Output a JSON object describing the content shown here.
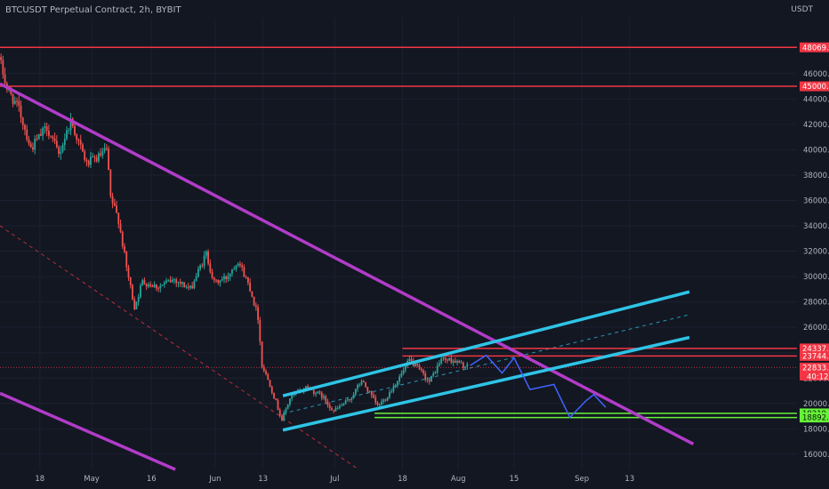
{
  "header": {
    "symbol_title": "BTCUSDT Perpetual Contract, 2h, BYBIT"
  },
  "axis": {
    "currency": "USDT"
  },
  "colors": {
    "background": "#131722",
    "grid": "#1c2030",
    "candle_up": "#26a69a",
    "candle_down": "#ef5350",
    "purple": "#b13cc8",
    "cyan": "#2ec4e6",
    "red": "#f23645",
    "green": "#66f23a",
    "projection": "#3f63ff"
  },
  "chart_data": {
    "type": "candlestick",
    "title": "BTCUSDT Perpetual Contract, 2h, BYBIT",
    "y_axis": {
      "unit": "USDT",
      "ticks": [
        "46000.0",
        "44000.0",
        "42000.0",
        "40000.0",
        "38000.0",
        "36000.0",
        "34000.0",
        "32000.0",
        "30000.0",
        "28000.0",
        "26000.0",
        "24000.0",
        "22000.0",
        "20000.0",
        "18000.0",
        "16000.0"
      ],
      "ylim": [
        14800,
        50400
      ]
    },
    "x_axis": {
      "ticks": [
        "18",
        "May",
        "16",
        "Jun",
        "13",
        "Jul",
        "18",
        "Aug",
        "15",
        "Sep",
        "13"
      ],
      "tick_dates": [
        "2022-04-18",
        "2022-05-01",
        "2022-05-16",
        "2022-06-01",
        "2022-06-13",
        "2022-07-01",
        "2022-07-18",
        "2022-08-01",
        "2022-08-15",
        "2022-09-01",
        "2022-09-13"
      ],
      "xlim": [
        "2022-04-08",
        "2022-10-25"
      ]
    },
    "price_path": [
      [
        "2022-04-08",
        47300
      ],
      [
        "2022-04-10",
        44800
      ],
      [
        "2022-04-13",
        43200
      ],
      [
        "2022-04-16",
        40100
      ],
      [
        "2022-04-20",
        41800
      ],
      [
        "2022-04-23",
        39600
      ],
      [
        "2022-04-26",
        42300
      ],
      [
        "2022-04-30",
        38900
      ],
      [
        "2022-05-03",
        39400
      ],
      [
        "2022-05-05",
        40000
      ],
      [
        "2022-05-06",
        36200
      ],
      [
        "2022-05-08",
        34500
      ],
      [
        "2022-05-10",
        30700
      ],
      [
        "2022-05-12",
        27600
      ],
      [
        "2022-05-14",
        29600
      ],
      [
        "2022-05-18",
        29200
      ],
      [
        "2022-05-22",
        29800
      ],
      [
        "2022-05-26",
        29000
      ],
      [
        "2022-05-30",
        31800
      ],
      [
        "2022-06-01",
        29500
      ],
      [
        "2022-06-04",
        29900
      ],
      [
        "2022-06-07",
        31300
      ],
      [
        "2022-06-10",
        29100
      ],
      [
        "2022-06-12",
        26800
      ],
      [
        "2022-06-13",
        23000
      ],
      [
        "2022-06-15",
        21500
      ],
      [
        "2022-06-18",
        18700
      ],
      [
        "2022-06-20",
        20400
      ],
      [
        "2022-06-24",
        21300
      ],
      [
        "2022-06-28",
        20600
      ],
      [
        "2022-07-01",
        19400
      ],
      [
        "2022-07-05",
        20300
      ],
      [
        "2022-07-08",
        21800
      ],
      [
        "2022-07-12",
        19800
      ],
      [
        "2022-07-14",
        20400
      ],
      [
        "2022-07-18",
        22300
      ],
      [
        "2022-07-20",
        23400
      ],
      [
        "2022-07-22",
        22800
      ],
      [
        "2022-07-25",
        21700
      ],
      [
        "2022-07-28",
        23500
      ],
      [
        "2022-07-31",
        23400
      ],
      [
        "2022-08-03",
        22900
      ]
    ],
    "horizontal_levels": [
      {
        "value": 48069.0,
        "label": "48069.0",
        "color": "red"
      },
      {
        "value": 45000.0,
        "label": "45000.0",
        "color": "red"
      },
      {
        "value": 24337.5,
        "label": "24337.5",
        "color": "red"
      },
      {
        "value": 23744.5,
        "label": "23744.5",
        "color": "red"
      },
      {
        "value": 19219.5,
        "label": "19219.5",
        "color": "green"
      },
      {
        "value": 18892.0,
        "label": "18892.0",
        "color": "green"
      }
    ],
    "current_price": {
      "value": 22833.0,
      "label": "22833.0",
      "countdown": "40:12"
    },
    "trendlines": [
      {
        "name": "main-descending-line",
        "color": "purple",
        "from": [
          "2022-04-08",
          45200
        ],
        "to": [
          "2022-09-29",
          16800
        ]
      },
      {
        "name": "lower-descending-line",
        "color": "purple",
        "from": [
          "2022-04-08",
          20800
        ],
        "to": [
          "2022-05-22",
          14800
        ]
      },
      {
        "name": "channel-upper-line",
        "color": "cyan",
        "from": [
          "2022-06-18",
          20600
        ],
        "to": [
          "2022-09-28",
          28800
        ]
      },
      {
        "name": "channel-lower-line",
        "color": "cyan",
        "from": [
          "2022-06-18",
          17900
        ],
        "to": [
          "2022-09-28",
          25200
        ]
      },
      {
        "name": "channel-mid-line",
        "color": "cyan",
        "dashed": true,
        "from": [
          "2022-06-18",
          19200
        ],
        "to": [
          "2022-09-28",
          27000
        ]
      },
      {
        "name": "dashed-descending-line",
        "color": "red",
        "dashed": true,
        "from": [
          "2022-04-08",
          34000
        ],
        "to": [
          "2022-07-07",
          14800
        ]
      }
    ],
    "projection_path": [
      [
        "2022-08-04",
        23000
      ],
      [
        "2022-08-08",
        23800
      ],
      [
        "2022-08-12",
        22400
      ],
      [
        "2022-08-15",
        23600
      ],
      [
        "2022-08-19",
        21100
      ],
      [
        "2022-08-25",
        21500
      ],
      [
        "2022-08-29",
        18900
      ],
      [
        "2022-09-02",
        20200
      ],
      [
        "2022-09-04",
        20700
      ],
      [
        "2022-09-07",
        19700
      ]
    ],
    "horizontal_level_spans": {
      "24337.5": [
        "2022-07-18",
        "2022-10-25"
      ],
      "23744.5": [
        "2022-07-18",
        "2022-10-25"
      ],
      "19219.5": [
        "2022-07-11",
        "2022-10-25"
      ],
      "18892.0": [
        "2022-07-11",
        "2022-10-25"
      ]
    }
  }
}
